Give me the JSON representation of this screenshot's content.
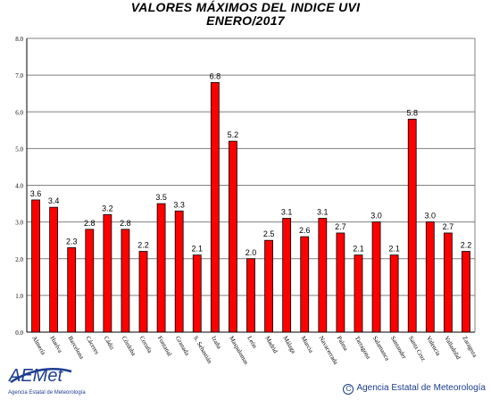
{
  "chart_data": {
    "type": "bar",
    "title": "VALORES MÁXIMOS DEL INDICE UVI",
    "subtitle": "ENERO/2017",
    "xlabel": "",
    "ylabel": "",
    "ylim": [
      0,
      8
    ],
    "yticks": [
      "0.0",
      "1.0",
      "2.0",
      "3.0",
      "4.0",
      "5.0",
      "6.0",
      "7.0",
      "8.0"
    ],
    "grid": true,
    "bar_color": "#ff0000",
    "categories": [
      "Almería",
      "Huelva",
      "Barcelona",
      "Cáceres",
      "Cádiz",
      "Córdoba",
      "Coruña",
      "Fontanal",
      "Granada",
      "S. Sebastián",
      "Izaña",
      "Maspalomas",
      "León",
      "Madrid",
      "Málaga",
      "Murcia",
      "Navacerrada",
      "Palma",
      "Tarragona",
      "Salamanca",
      "Santander",
      "Santa Cruz",
      "Valencia",
      "Valladolid",
      "Zaragoza"
    ],
    "values": [
      3.6,
      3.4,
      2.3,
      2.8,
      3.2,
      2.8,
      2.2,
      3.5,
      3.3,
      2.1,
      6.8,
      5.2,
      2.0,
      2.5,
      3.1,
      2.6,
      3.1,
      2.7,
      2.1,
      3.0,
      2.1,
      5.8,
      3.0,
      2.7,
      2.2
    ],
    "value_labels": [
      "3.6",
      "3.4",
      "2.3",
      "2.8",
      "3.2",
      "2.8",
      "2.2",
      "3.5",
      "3.3",
      "2.1",
      "6.8",
      "5.2",
      "2.0",
      "2.5",
      "3.1",
      "2.6",
      "3.1",
      "2.7",
      "2.1",
      "3.0",
      "2.1",
      "5.8",
      "3.0",
      "2.7",
      "2.2"
    ]
  },
  "footer": {
    "logo_text": "AEMet",
    "logo_subtext": "Agencia Estatal de Meteorología",
    "copyright_symbol": "C",
    "copyright": "Agencia Estatal de Meteorología"
  },
  "colors": {
    "accent": "#ff0000",
    "brand": "#1c3d8f"
  }
}
